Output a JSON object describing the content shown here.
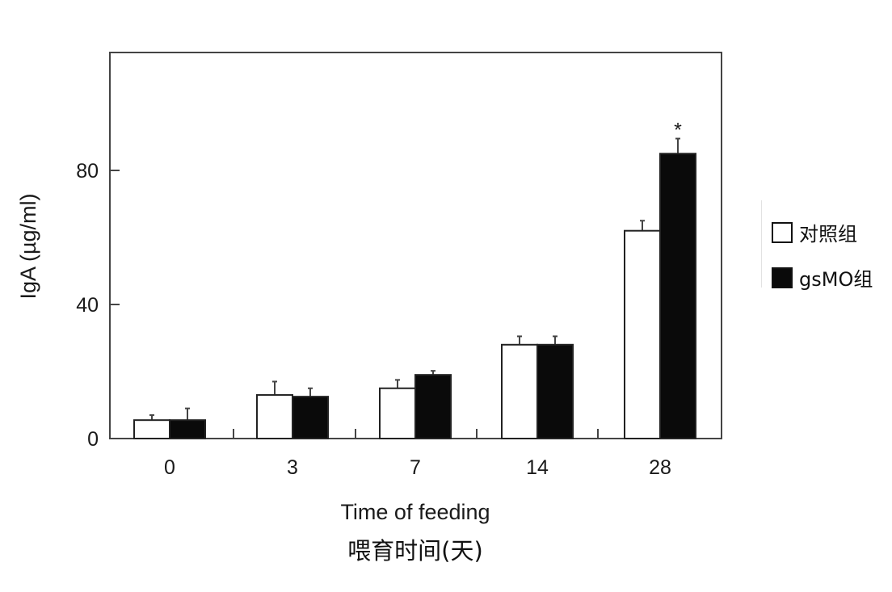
{
  "chart_data": {
    "type": "bar",
    "title": "",
    "xlabel": "Time of feeding",
    "xlabel_cn": "喂育时间(天)",
    "ylabel": "IgA (µg/ml)",
    "ylim": [
      0,
      100
    ],
    "yticks": [
      0,
      40,
      80
    ],
    "categories": [
      "0",
      "3",
      "7",
      "14",
      "28"
    ],
    "series": [
      {
        "name": "对照组",
        "fill": "#ffffff",
        "values": [
          5.5,
          13,
          15,
          28,
          62
        ],
        "error": [
          1.5,
          4,
          2.5,
          2.5,
          3
        ]
      },
      {
        "name": "gsMO组",
        "fill": "#0a0a0a",
        "values": [
          5.5,
          12.5,
          19,
          28,
          85
        ],
        "error": [
          3.5,
          2.5,
          1.2,
          2.5,
          4.5
        ]
      }
    ],
    "annotations": [
      {
        "category": "28",
        "series": "gsMO组",
        "text": "*"
      }
    ],
    "grid": false,
    "legend_position": "right"
  },
  "legend": {
    "items": [
      {
        "label": "对照组",
        "color": "#ffffff"
      },
      {
        "label": "gsMO组",
        "color": "#0a0a0a"
      }
    ]
  }
}
